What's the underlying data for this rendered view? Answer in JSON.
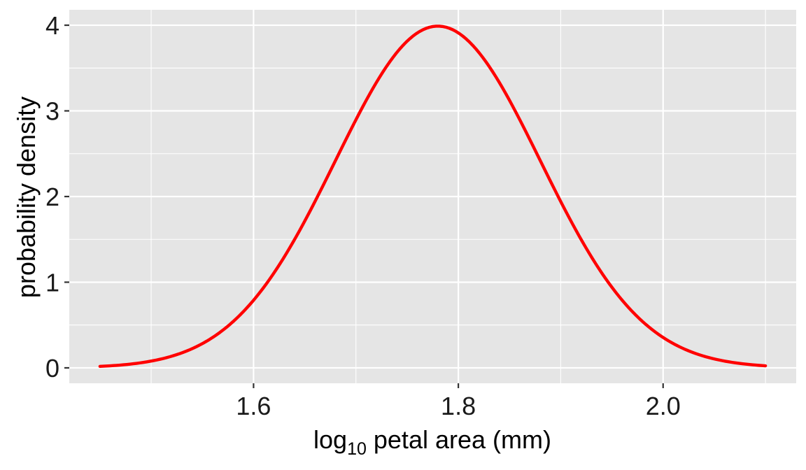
{
  "chart_data": {
    "type": "line",
    "title": "",
    "xlabel": "log10 petal area (mm)",
    "xlabel_parts": {
      "pre": "log",
      "sub": "10",
      "post": " petal area (mm)"
    },
    "ylabel": "probability density",
    "xlim": [
      1.42,
      2.13
    ],
    "ylim": [
      -0.18,
      4.18
    ],
    "x_ticks": [
      1.6,
      1.8,
      2.0
    ],
    "x_tick_labels": [
      "1.6",
      "1.8",
      "2.0"
    ],
    "x_minor_ticks": [
      1.5,
      1.7,
      1.9,
      2.1
    ],
    "y_ticks": [
      0,
      1,
      2,
      3,
      4
    ],
    "y_tick_labels": [
      "0",
      "1",
      "2",
      "3",
      "4"
    ],
    "y_minor_ticks": [
      0.5,
      1.5,
      2.5,
      3.5
    ],
    "grid": true,
    "legend": "none",
    "series": [
      {
        "color": "#ff0000",
        "distribution": "normal",
        "mean": 1.78,
        "sd": 0.1,
        "x_range": [
          1.45,
          2.1
        ],
        "x": [
          1.45,
          1.5,
          1.55,
          1.6,
          1.65,
          1.7,
          1.75,
          1.78,
          1.8,
          1.85,
          1.9,
          1.95,
          2.0,
          2.05,
          2.1
        ],
        "values": [
          0.02,
          0.08,
          0.28,
          0.79,
          1.71,
          2.9,
          3.81,
          3.99,
          3.91,
          3.12,
          1.94,
          0.94,
          0.36,
          0.11,
          0.02
        ]
      }
    ]
  }
}
